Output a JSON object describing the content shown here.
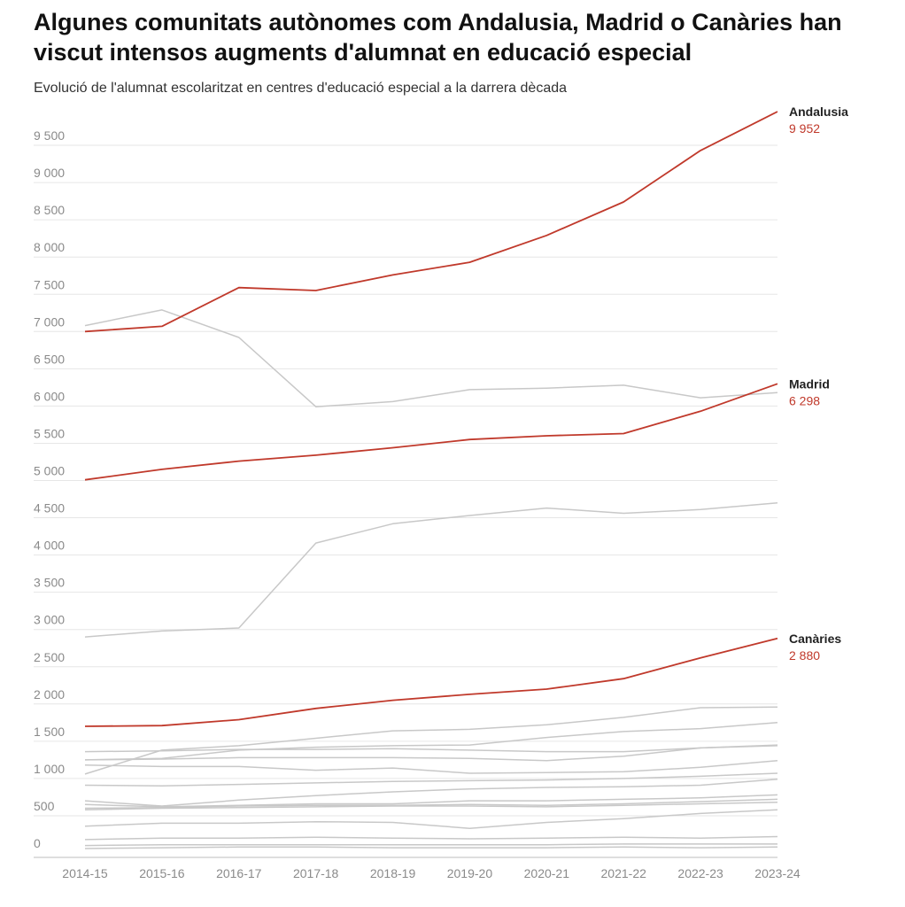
{
  "title": "Algunes comunitats autònomes com Andalusia, Madrid o Canàries han viscut intensos augments d'alumnat en educació especial",
  "subtitle": "Evolució de l'alumnat escolaritzat en centres d'educació especial a la darrera dècada",
  "colors": {
    "highlight": "#c0392b",
    "background_series": "#c8c8c8",
    "grid": "#e6e6e6"
  },
  "chart_data": {
    "type": "line",
    "title": "Algunes comunitats autònomes com Andalusia, Madrid o Canàries han viscut intensos augments d'alumnat en educació especial",
    "subtitle": "Evolució de l'alumnat escolaritzat en centres d'educació especial a la darrera dècada",
    "xlabel": "",
    "ylabel": "",
    "x": [
      "2014-15",
      "2015-16",
      "2016-17",
      "2017-18",
      "2018-19",
      "2019-20",
      "2020-21",
      "2021-22",
      "2022-23",
      "2023-24"
    ],
    "y_ticks": [
      0,
      500,
      1000,
      1500,
      2000,
      2500,
      3000,
      3500,
      4000,
      4500,
      5000,
      5500,
      6000,
      6500,
      7000,
      7500,
      8000,
      8500,
      9000,
      9500
    ],
    "y_tick_labels": [
      "0",
      "500",
      "1 000",
      "1 500",
      "2 000",
      "2 500",
      "3 000",
      "3 500",
      "4 000",
      "4 500",
      "5 000",
      "5 500",
      "6 000",
      "6 500",
      "7 000",
      "7 500",
      "8 000",
      "8 500",
      "9 000",
      "9 500"
    ],
    "ylim": [
      0,
      10000
    ],
    "grid": true,
    "legend": "end-of-line labels",
    "highlighted_series": [
      {
        "name": "Andalusia",
        "end_label": "9 952",
        "values": [
          7000,
          7070,
          7590,
          7550,
          7760,
          7930,
          8290,
          8740,
          9430,
          9952
        ]
      },
      {
        "name": "Madrid",
        "end_label": "6 298",
        "values": [
          5010,
          5150,
          5260,
          5340,
          5440,
          5550,
          5600,
          5630,
          5930,
          6298
        ]
      },
      {
        "name": "Canàries",
        "end_label": "2 880",
        "values": [
          1700,
          1710,
          1790,
          1940,
          2050,
          2130,
          2200,
          2340,
          2620,
          2880
        ]
      }
    ],
    "other_series": [
      {
        "values": [
          7080,
          7290,
          6920,
          5990,
          6060,
          6220,
          6240,
          6280,
          6110,
          6180
        ]
      },
      {
        "values": [
          2900,
          2980,
          3020,
          4160,
          4420,
          4530,
          4630,
          4560,
          4610,
          4700
        ]
      },
      {
        "values": [
          1060,
          1380,
          1440,
          1540,
          1640,
          1660,
          1720,
          1820,
          1950,
          1960
        ]
      },
      {
        "values": [
          1250,
          1270,
          1380,
          1420,
          1440,
          1450,
          1550,
          1630,
          1670,
          1750
        ]
      },
      {
        "values": [
          1360,
          1370,
          1390,
          1390,
          1400,
          1380,
          1360,
          1360,
          1410,
          1440
        ]
      },
      {
        "values": [
          1250,
          1260,
          1280,
          1280,
          1280,
          1270,
          1240,
          1300,
          1410,
          1450
        ]
      },
      {
        "values": [
          1180,
          1160,
          1160,
          1110,
          1140,
          1070,
          1080,
          1090,
          1150,
          1240
        ]
      },
      {
        "values": [
          910,
          900,
          920,
          940,
          960,
          970,
          980,
          1000,
          1030,
          1070
        ]
      },
      {
        "values": [
          700,
          630,
          710,
          770,
          820,
          860,
          880,
          890,
          910,
          990
        ]
      },
      {
        "values": [
          650,
          620,
          640,
          660,
          660,
          700,
          700,
          720,
          740,
          780
        ]
      },
      {
        "values": [
          600,
          610,
          630,
          640,
          640,
          650,
          640,
          660,
          690,
          720
        ]
      },
      {
        "values": [
          580,
          600,
          610,
          620,
          630,
          630,
          620,
          640,
          660,
          680
        ]
      },
      {
        "values": [
          360,
          400,
          400,
          420,
          410,
          330,
          410,
          460,
          530,
          580
        ]
      },
      {
        "values": [
          180,
          200,
          200,
          210,
          200,
          190,
          200,
          210,
          200,
          220
        ]
      },
      {
        "values": [
          100,
          110,
          110,
          110,
          110,
          110,
          110,
          120,
          120,
          120
        ]
      },
      {
        "values": [
          60,
          70,
          80,
          80,
          70,
          70,
          70,
          80,
          70,
          80
        ]
      }
    ]
  }
}
